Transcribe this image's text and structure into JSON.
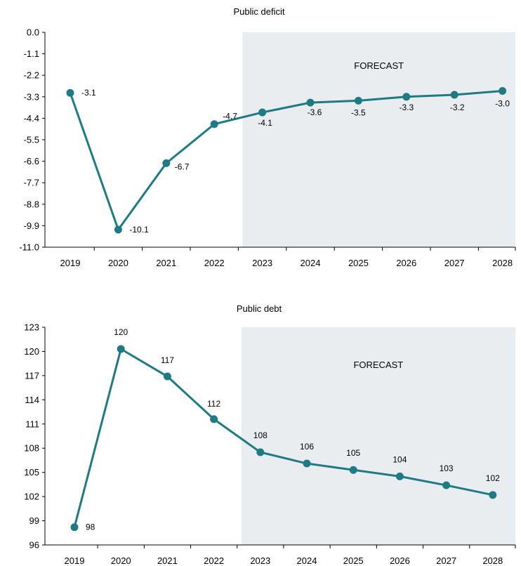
{
  "colors": {
    "line": "#1e7b83",
    "forecast_bg": "#eaedf0",
    "axis": "#000000"
  },
  "chart_data": [
    {
      "type": "line",
      "title": "Public deficit",
      "categories": [
        "2019",
        "2020",
        "2021",
        "2022",
        "2023",
        "2024",
        "2025",
        "2026",
        "2027",
        "2028"
      ],
      "values": [
        -3.1,
        -10.1,
        -6.7,
        -4.7,
        -4.1,
        -3.6,
        -3.5,
        -3.3,
        -3.2,
        -3.0
      ],
      "data_labels": [
        "-3.1",
        "-10.1",
        "-6.7",
        "-4.7",
        "-4.1",
        "-3.6",
        "-3.5",
        "-3.3",
        "-3.2",
        "-3.0"
      ],
      "y_ticks": [
        "0.0",
        "-1.1",
        "-2.2",
        "-3.3",
        "-4.4",
        "-5.5",
        "-6.6",
        "-7.7",
        "-8.8",
        "-9.9",
        "-11.0"
      ],
      "ylim": [
        -11.0,
        0.0
      ],
      "forecast_start": "2023",
      "forecast_label": "FORECAST",
      "xlabel": "",
      "ylabel": ""
    },
    {
      "type": "line",
      "title": "Public debt",
      "categories": [
        "2019",
        "2020",
        "2021",
        "2022",
        "2023",
        "2024",
        "2025",
        "2026",
        "2027",
        "2028"
      ],
      "values": [
        98.2,
        120.3,
        116.9,
        111.6,
        107.5,
        106.1,
        105.3,
        104.5,
        103.4,
        102.2
      ],
      "data_labels": [
        "98",
        "120",
        "117",
        "112",
        "108",
        "106",
        "105",
        "104",
        "103",
        "102"
      ],
      "y_ticks": [
        "123",
        "120",
        "117",
        "114",
        "111",
        "108",
        "105",
        "102",
        "99",
        "96"
      ],
      "ylim": [
        96,
        123
      ],
      "forecast_start": "2023",
      "forecast_label": "FORECAST",
      "xlabel": "",
      "ylabel": ""
    }
  ]
}
